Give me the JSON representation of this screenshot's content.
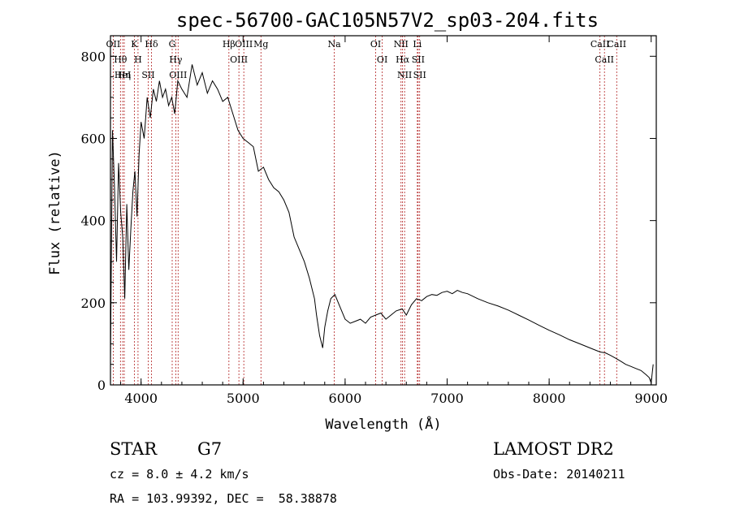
{
  "chart_data": {
    "type": "line",
    "title": "spec-56700-GAC105N57V2_sp03-204.fits",
    "xlabel": "Wavelength (Å)",
    "ylabel": "Flux (relative)",
    "xlim": [
      3700,
      9050
    ],
    "ylim": [
      0,
      850
    ],
    "x_ticks": [
      4000,
      5000,
      6000,
      7000,
      8000,
      9000
    ],
    "y_ticks": [
      0,
      200,
      400,
      600,
      800
    ],
    "grid": false,
    "series": [
      {
        "x": [
          3700,
          3720,
          3740,
          3760,
          3780,
          3800,
          3820,
          3840,
          3860,
          3880,
          3900,
          3920,
          3940,
          3960,
          3980,
          4000,
          4030,
          4060,
          4090,
          4120,
          4150,
          4180,
          4210,
          4240,
          4270,
          4300,
          4330,
          4360,
          4400,
          4450,
          4500,
          4550,
          4600,
          4650,
          4700,
          4750,
          4800,
          4850,
          4900,
          4950,
          5000,
          5050,
          5100,
          5150,
          5200,
          5250,
          5300,
          5350,
          5400,
          5450,
          5500,
          5550,
          5600,
          5650,
          5700,
          5720,
          5750,
          5780,
          5800,
          5830,
          5860,
          5900,
          5950,
          6000,
          6050,
          6100,
          6150,
          6200,
          6250,
          6300,
          6350,
          6400,
          6450,
          6500,
          6560,
          6600,
          6650,
          6700,
          6750,
          6800,
          6850,
          6900,
          6950,
          7000,
          7050,
          7100,
          7150,
          7200,
          7300,
          7400,
          7500,
          7600,
          7700,
          7800,
          7900,
          8000,
          8100,
          8200,
          8300,
          8400,
          8500,
          8550,
          8600,
          8650,
          8700,
          8750,
          8800,
          8850,
          8900,
          8950,
          8980,
          9000,
          9020
        ],
        "y": [
          60,
          620,
          480,
          300,
          540,
          420,
          360,
          210,
          440,
          280,
          380,
          470,
          520,
          410,
          560,
          640,
          600,
          700,
          650,
          720,
          690,
          740,
          700,
          720,
          680,
          700,
          660,
          740,
          720,
          700,
          780,
          730,
          760,
          710,
          740,
          720,
          690,
          700,
          660,
          620,
          600,
          590,
          580,
          520,
          530,
          500,
          480,
          470,
          450,
          420,
          360,
          330,
          300,
          260,
          210,
          170,
          120,
          90,
          140,
          180,
          210,
          220,
          190,
          160,
          150,
          155,
          160,
          150,
          165,
          170,
          175,
          160,
          170,
          180,
          185,
          170,
          195,
          210,
          205,
          215,
          220,
          218,
          225,
          228,
          222,
          230,
          225,
          222,
          210,
          200,
          192,
          182,
          170,
          158,
          145,
          133,
          122,
          110,
          100,
          90,
          80,
          78,
          72,
          65,
          58,
          50,
          45,
          40,
          35,
          25,
          18,
          5,
          50
        ],
        "color": "#000000"
      }
    ],
    "line_labels": [
      {
        "label": "Hθ",
        "x": 3798
      },
      {
        "label": "OII",
        "x": 3727
      },
      {
        "label": "HeI",
        "x": 3820
      },
      {
        "label": "Hη",
        "x": 3835
      },
      {
        "label": "K",
        "x": 3934
      },
      {
        "label": "H",
        "x": 3970
      },
      {
        "label": "SII",
        "x": 4070
      },
      {
        "label": "Hδ",
        "x": 4102
      },
      {
        "label": "OIII",
        "x": 4363
      },
      {
        "label": "Hγ",
        "x": 4340
      },
      {
        "label": "G",
        "x": 4305
      },
      {
        "label": "Hβ",
        "x": 4861
      },
      {
        "label": "OIII",
        "x": 4959
      },
      {
        "label": "OIII",
        "x": 5007
      },
      {
        "label": "Mg",
        "x": 5175
      },
      {
        "label": "Na",
        "x": 5894
      },
      {
        "label": "OI",
        "x": 6300
      },
      {
        "label": "OI",
        "x": 6364
      },
      {
        "label": "NII",
        "x": 6548
      },
      {
        "label": "Hα",
        "x": 6563
      },
      {
        "label": "NII",
        "x": 6583
      },
      {
        "label": "Li",
        "x": 6708
      },
      {
        "label": "SII",
        "x": 6716
      },
      {
        "label": "SII",
        "x": 6731
      },
      {
        "label": "CaII",
        "x": 8498
      },
      {
        "label": "CaII",
        "x": 8542
      },
      {
        "label": "CaII",
        "x": 8662
      }
    ]
  },
  "info": {
    "object": "STAR",
    "subclass": "G7",
    "survey": "LAMOST DR2",
    "cz": "cz = 8.0 ± 4.2 km/s",
    "obs_date": "Obs-Date: 20140211",
    "coords": "RA = 103.99392, DEC =  58.38878"
  }
}
